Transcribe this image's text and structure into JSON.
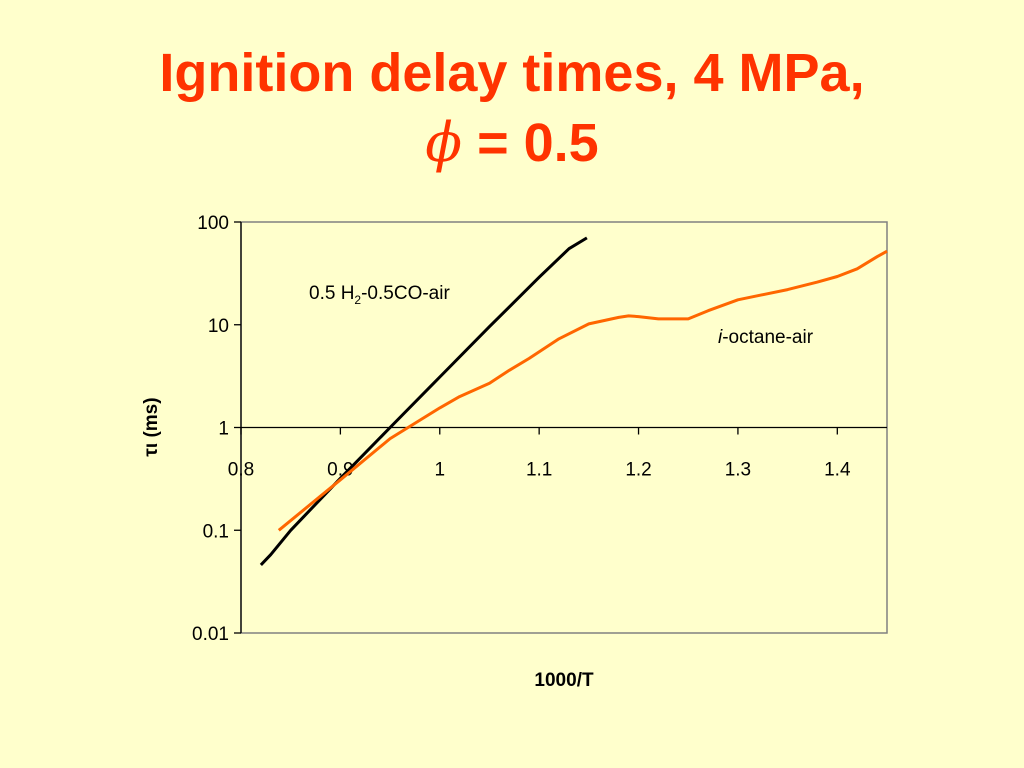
{
  "title": {
    "line1": "Ignition delay times, 4 MPa,",
    "phi_symbol": "ϕ",
    "line2_rest": " = 0.5"
  },
  "chart_data": {
    "type": "line",
    "xlabel": "1000/T",
    "ylabel": "τι (ms)",
    "xlim": [
      0.8,
      1.45
    ],
    "ylim": [
      0.01,
      100
    ],
    "yscale": "log",
    "x_ticks": [
      "0.8",
      "0.9",
      "1",
      "1.1",
      "1.2",
      "1.3",
      "1.4"
    ],
    "x_tick_values": [
      0.8,
      0.9,
      1.0,
      1.1,
      1.2,
      1.3,
      1.4
    ],
    "y_ticks": [
      "100",
      "10",
      "1",
      "0.1",
      "0.01"
    ],
    "y_tick_values": [
      100,
      10,
      1,
      0.1,
      0.01
    ],
    "x_axis_crosses_at_y": 1,
    "grid": false,
    "series": [
      {
        "name_parts": [
          "0.5 H",
          "2",
          "-0.5CO-air"
        ],
        "color": "#000000",
        "points": [
          [
            0.82,
            0.046
          ],
          [
            0.83,
            0.058
          ],
          [
            0.85,
            0.1
          ],
          [
            0.9,
            0.32
          ],
          [
            0.95,
            1.0
          ],
          [
            1.0,
            3.1
          ],
          [
            1.05,
            9.6
          ],
          [
            1.1,
            29
          ],
          [
            1.13,
            55
          ],
          [
            1.148,
            70
          ]
        ]
      },
      {
        "name_parts": [
          "i",
          "-octane-air"
        ],
        "color": "#FF6600",
        "points": [
          [
            0.838,
            0.1
          ],
          [
            0.9,
            0.31
          ],
          [
            0.95,
            0.78
          ],
          [
            1.0,
            1.55
          ],
          [
            1.02,
            2.0
          ],
          [
            1.05,
            2.7
          ],
          [
            1.07,
            3.6
          ],
          [
            1.09,
            4.7
          ],
          [
            1.12,
            7.3
          ],
          [
            1.15,
            10.2
          ],
          [
            1.18,
            11.8
          ],
          [
            1.19,
            12.2
          ],
          [
            1.2,
            12.0
          ],
          [
            1.22,
            11.4
          ],
          [
            1.25,
            11.4
          ],
          [
            1.27,
            13.7
          ],
          [
            1.3,
            17.5
          ],
          [
            1.35,
            22
          ],
          [
            1.38,
            26
          ],
          [
            1.4,
            29.5
          ],
          [
            1.42,
            35
          ],
          [
            1.44,
            46
          ],
          [
            1.45,
            52
          ]
        ]
      }
    ]
  }
}
